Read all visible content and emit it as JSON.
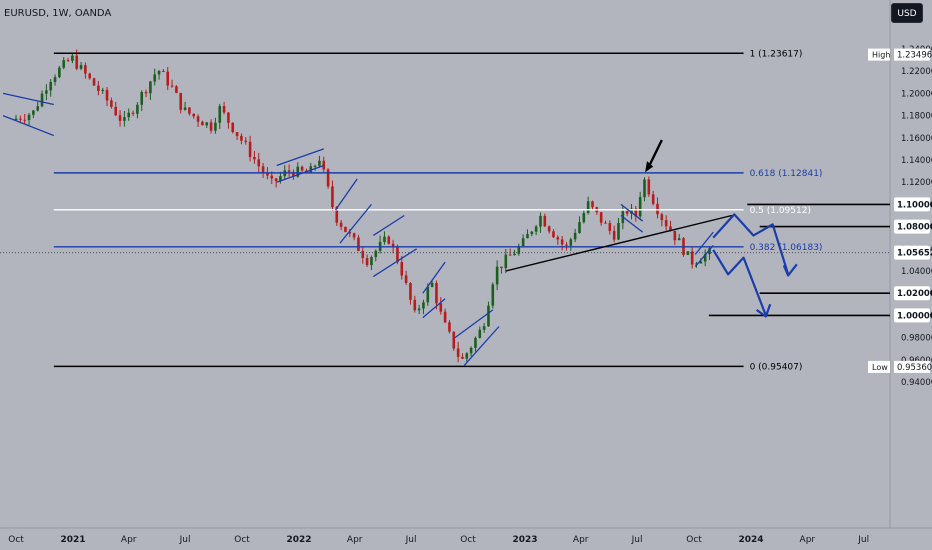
{
  "header": {
    "symbol": "EURUSD, 1W, OANDA",
    "currency": "USD"
  },
  "chart_data": {
    "type": "candlestick",
    "instrument": "EURUSD",
    "timeframe": "1W",
    "source": "OANDA",
    "y_axis": {
      "ticks": [
        "1.24000",
        "1.22000",
        "1.20000",
        "1.18000",
        "1.16000",
        "1.14000",
        "1.12000",
        "1.10000",
        "1.08000",
        "1.06000",
        "1.04000",
        "1.02000",
        "1.00000",
        "0.98000",
        "0.96000",
        "0.94000"
      ],
      "range": [
        0.933,
        1.265
      ]
    },
    "x_axis": {
      "ticks": [
        {
          "label": "Oct",
          "date": "2020-10-01"
        },
        {
          "label": "2021",
          "date": "2021-01-01"
        },
        {
          "label": "Apr",
          "date": "2021-04-01"
        },
        {
          "label": "Jul",
          "date": "2021-07-01"
        },
        {
          "label": "Oct",
          "date": "2021-10-01"
        },
        {
          "label": "2022",
          "date": "2022-01-01"
        },
        {
          "label": "Apr",
          "date": "2022-04-01"
        },
        {
          "label": "Jul",
          "date": "2022-07-01"
        },
        {
          "label": "Oct",
          "date": "2022-10-01"
        },
        {
          "label": "2023",
          "date": "2023-01-01"
        },
        {
          "label": "Apr",
          "date": "2023-04-01"
        },
        {
          "label": "Jul",
          "date": "2023-07-01"
        },
        {
          "label": "Oct",
          "date": "2023-10-01"
        },
        {
          "label": "2024",
          "date": "2024-01-01"
        },
        {
          "label": "Apr",
          "date": "2024-04-01"
        },
        {
          "label": "Jul",
          "date": "2024-07-01"
        }
      ]
    },
    "price_series": [
      {
        "date": "2020-10-01",
        "close": 1.176
      },
      {
        "date": "2020-11-05",
        "close": 1.183
      },
      {
        "date": "2020-12-01",
        "close": 1.213
      },
      {
        "date": "2021-01-06",
        "close": 1.232
      },
      {
        "date": "2021-02-01",
        "close": 1.214
      },
      {
        "date": "2021-03-01",
        "close": 1.196
      },
      {
        "date": "2021-03-31",
        "close": 1.173
      },
      {
        "date": "2021-05-25",
        "close": 1.222
      },
      {
        "date": "2021-06-15",
        "close": 1.207
      },
      {
        "date": "2021-07-05",
        "close": 1.185
      },
      {
        "date": "2021-08-20",
        "close": 1.17
      },
      {
        "date": "2021-09-01",
        "close": 1.187
      },
      {
        "date": "2021-10-12",
        "close": 1.154
      },
      {
        "date": "2021-11-24",
        "close": 1.118
      },
      {
        "date": "2021-12-20",
        "close": 1.13
      },
      {
        "date": "2022-01-25",
        "close": 1.128
      },
      {
        "date": "2022-02-10",
        "close": 1.142
      },
      {
        "date": "2022-03-07",
        "close": 1.09
      },
      {
        "date": "2022-04-28",
        "close": 1.05
      },
      {
        "date": "2022-06-01",
        "close": 1.07
      },
      {
        "date": "2022-06-20",
        "close": 1.045
      },
      {
        "date": "2022-07-14",
        "close": 1.0
      },
      {
        "date": "2022-08-10",
        "close": 1.03
      },
      {
        "date": "2022-08-28",
        "close": 0.995
      },
      {
        "date": "2022-09-27",
        "close": 0.958
      },
      {
        "date": "2022-11-01",
        "close": 0.99
      },
      {
        "date": "2022-11-20",
        "close": 1.04
      },
      {
        "date": "2023-01-05",
        "close": 1.065
      },
      {
        "date": "2023-02-01",
        "close": 1.09
      },
      {
        "date": "2023-03-15",
        "close": 1.06
      },
      {
        "date": "2023-04-20",
        "close": 1.1
      },
      {
        "date": "2023-05-31",
        "close": 1.072
      },
      {
        "date": "2023-06-20",
        "close": 1.095
      },
      {
        "date": "2023-07-06",
        "close": 1.09
      },
      {
        "date": "2023-07-18",
        "close": 1.124
      },
      {
        "date": "2023-08-15",
        "close": 1.09
      },
      {
        "date": "2023-09-15",
        "close": 1.065
      },
      {
        "date": "2023-10-03",
        "close": 1.048
      },
      {
        "date": "2023-10-31",
        "close": 1.056
      }
    ],
    "fibonacci": [
      {
        "level": "1",
        "price": 1.23617,
        "label": "1 (1.23617)",
        "color": "#000000"
      },
      {
        "level": "0.618",
        "price": 1.12841,
        "label": "0.618 (1.12841)",
        "color": "#1a3da8"
      },
      {
        "level": "0.5",
        "price": 1.09512,
        "label": "0.5 (1.09512)",
        "color": "#ffffff"
      },
      {
        "level": "0.382",
        "price": 1.06183,
        "label": "0.382 (1.06183)",
        "color": "#1a3da8"
      },
      {
        "level": "0",
        "price": 0.95407,
        "label": "0 (0.95407)",
        "color": "#000000"
      }
    ],
    "horizontal_levels": [
      {
        "price": 1.1,
        "label": "1.10000"
      },
      {
        "price": 1.08,
        "label": "1.08000"
      },
      {
        "price": 1.02,
        "label": "1.02000"
      },
      {
        "price": 1.0,
        "label": "1.00000"
      }
    ],
    "current_price": {
      "price": 1.05652,
      "label": "1.05652"
    },
    "high": {
      "tag": "High",
      "price": 1.23496,
      "label": "1.23496"
    },
    "low": {
      "tag": "Low",
      "price": 0.9536,
      "label": "0.95360"
    },
    "colors": {
      "up": "#1b5e20",
      "down": "#b71c1c",
      "projection": "#1a3da8",
      "background": "#b2b5be"
    },
    "annotations": [
      "black arrow pointing down at the July 2023 high",
      "blue zigzag projection arrows pointing lower"
    ]
  }
}
